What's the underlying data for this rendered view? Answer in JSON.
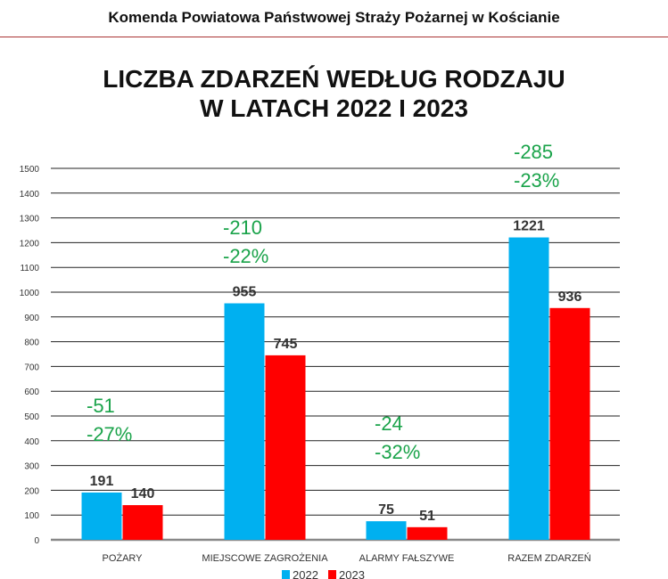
{
  "header": {
    "organization": "Komenda Powiatowa Państwowej Straży Pożarnej w Kościanie"
  },
  "chart_data": {
    "type": "bar",
    "title_line1": "LICZBA ZDARZEŃ WEDŁUG RODZAJU",
    "title_line2": "W LATACH 2022 I 2023",
    "categories": [
      "POŻARY",
      "MIEJSCOWE ZAGROŻENIA",
      "ALARMY FAŁSZYWE",
      "RAZEM ZDARZEŃ"
    ],
    "series": [
      {
        "name": "2022",
        "color": "#00b0f0",
        "values": [
          191,
          955,
          75,
          1221
        ]
      },
      {
        "name": "2023",
        "color": "#ff0000",
        "values": [
          140,
          745,
          51,
          936
        ]
      }
    ],
    "annotations": [
      {
        "change": "-51",
        "percent": "-27%"
      },
      {
        "change": "-210",
        "percent": "-22%"
      },
      {
        "change": "-24",
        "percent": "-32%"
      },
      {
        "change": "-285",
        "percent": "-23%"
      }
    ],
    "annotation_color": "#1aa34a",
    "ylim": [
      0,
      1500
    ],
    "yticks": [
      0,
      100,
      200,
      300,
      400,
      500,
      600,
      700,
      800,
      900,
      1000,
      1100,
      1200,
      1300,
      1400,
      1500
    ],
    "grid": true,
    "legend": "bottom"
  }
}
